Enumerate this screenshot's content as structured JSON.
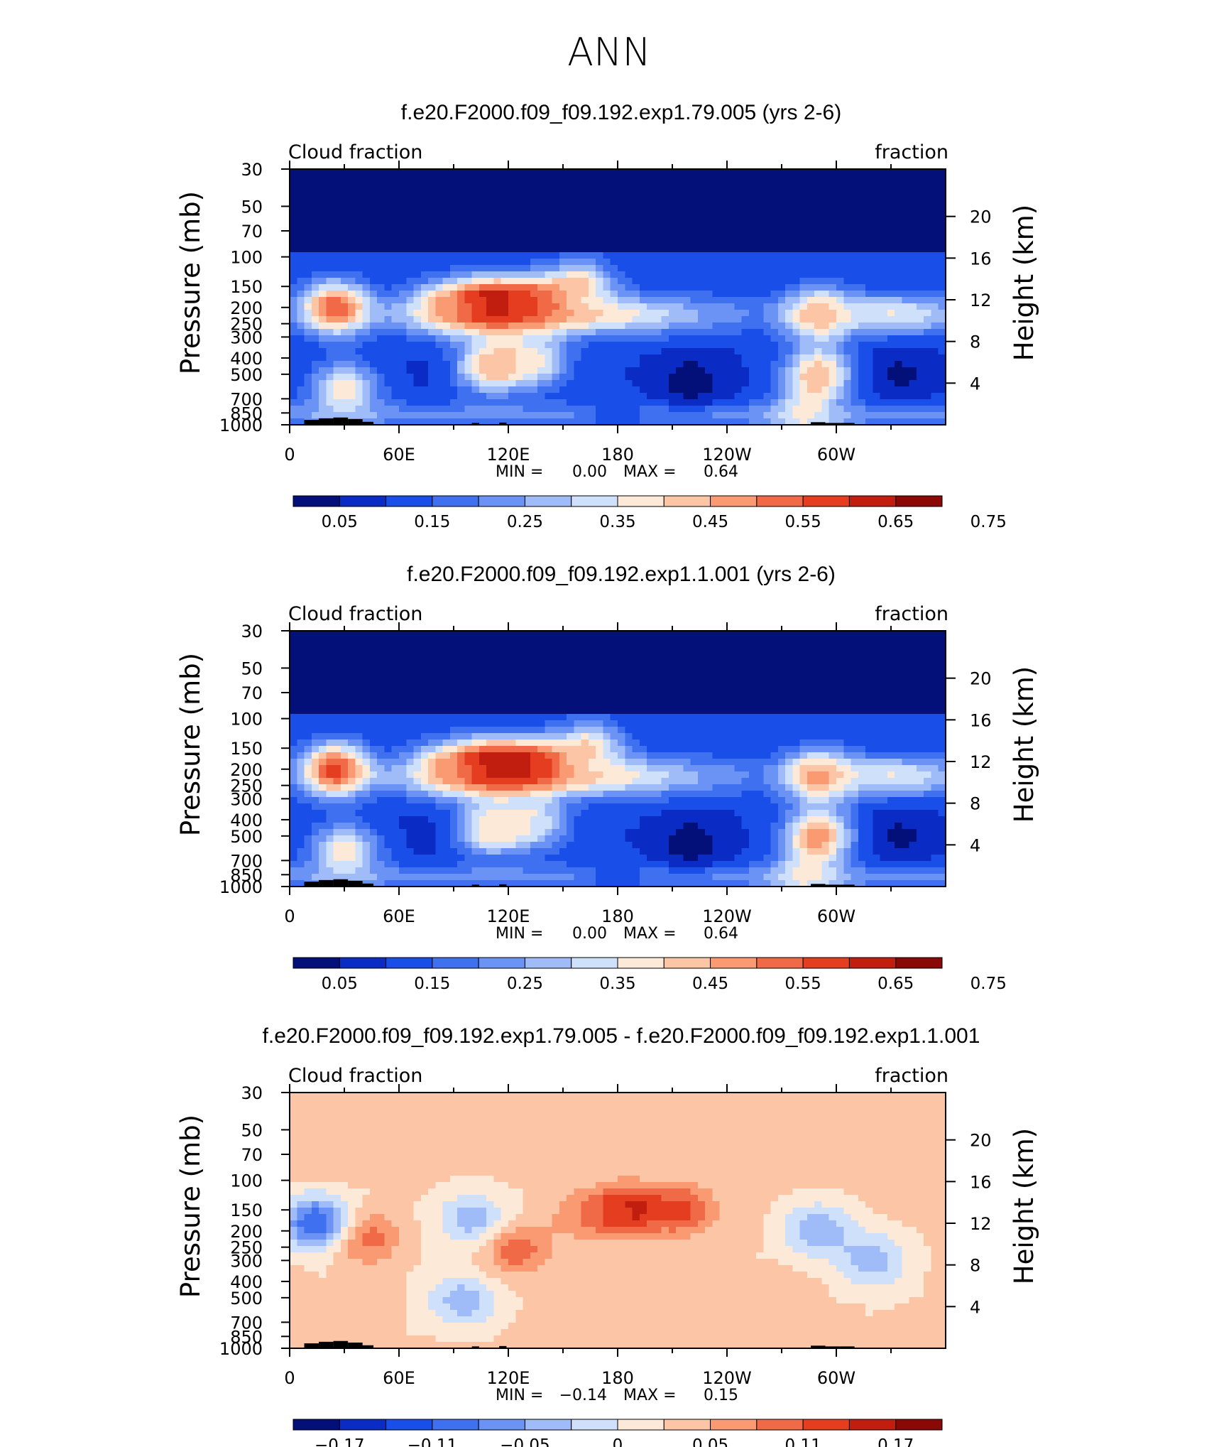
{
  "figure": {
    "title": "ANN"
  },
  "chart_data": [
    {
      "type": "heatmap",
      "title": "f.e20.F2000.f09_f09.192.exp1.79.005 (yrs 2-6)",
      "left_label": "Cloud fraction",
      "right_label": "fraction",
      "xlabel": "",
      "ylabel": "Pressure (mb)",
      "ylabel_right": "Height (km)",
      "x_tick_labels": [
        "0",
        "60E",
        "120E",
        "180",
        "120W",
        "60W"
      ],
      "y_tick_labels": [
        "30",
        "50",
        "70",
        "100",
        "150",
        "200",
        "250",
        "300",
        "400",
        "500",
        "700",
        "850",
        "1000"
      ],
      "height_tick_labels": [
        "20",
        "16",
        "12",
        "8",
        "4"
      ],
      "stats": {
        "min_label": "MIN =",
        "min": "0.00",
        "max_label": "MAX =",
        "max": "0.64"
      },
      "colorbar": {
        "levels": [
          0,
          0.05,
          0.1,
          0.15,
          0.2,
          0.25,
          0.3,
          0.35,
          0.4,
          0.45,
          0.5,
          0.55,
          0.6,
          0.65,
          0.7,
          0.75,
          0.8
        ],
        "labels": [
          "0.05",
          "0.15",
          "0.25",
          "0.35",
          "0.45",
          "0.55",
          "0.65",
          "0.75"
        ],
        "colors": [
          "#03107a",
          "#0a2cc4",
          "#1a4ee8",
          "#3e70f0",
          "#6a93f5",
          "#9fbbf8",
          "#cfe0fb",
          "#fde9d8",
          "#fcc6a6",
          "#f99a72",
          "#f16a47",
          "#e43d1f",
          "#c21e10",
          "#8a0806"
        ]
      },
      "field_features": [
        {
          "lon": 25,
          "lev": 200,
          "value": 0.55
        },
        {
          "lon": 85,
          "lev": 200,
          "value": 0.45
        },
        {
          "lon": 110,
          "lev": 190,
          "value": 0.64
        },
        {
          "lon": 135,
          "lev": 190,
          "value": 0.55
        },
        {
          "lon": 160,
          "lev": 150,
          "value": 0.4
        },
        {
          "lon": 30,
          "lev": 620,
          "value": 0.4
        },
        {
          "lon": 110,
          "lev": 450,
          "value": 0.45
        },
        {
          "lon": 135,
          "lev": 420,
          "value": 0.35
        },
        {
          "lon": 290,
          "lev": 220,
          "value": 0.45
        },
        {
          "lon": 290,
          "lev": 500,
          "value": 0.45
        },
        {
          "lon": 283,
          "lev": 900,
          "value": 0.35
        },
        {
          "lon": 220,
          "lev": 550,
          "value": 0.02
        },
        {
          "lon": 335,
          "lev": 500,
          "value": 0.04
        },
        {
          "lon": 80,
          "lev": 450,
          "value": 0.09
        },
        {
          "lon": 180,
          "lev": 900,
          "value": 0.12
        }
      ]
    },
    {
      "type": "heatmap",
      "title": "f.e20.F2000.f09_f09.192.exp1.1.001 (yrs 2-6)",
      "left_label": "Cloud fraction",
      "right_label": "fraction",
      "xlabel": "",
      "ylabel": "Pressure (mb)",
      "ylabel_right": "Height (km)",
      "x_tick_labels": [
        "0",
        "60E",
        "120E",
        "180",
        "120W",
        "60W"
      ],
      "y_tick_labels": [
        "30",
        "50",
        "70",
        "100",
        "150",
        "200",
        "250",
        "300",
        "400",
        "500",
        "700",
        "850",
        "1000"
      ],
      "height_tick_labels": [
        "20",
        "16",
        "12",
        "8",
        "4"
      ],
      "stats": {
        "min_label": "MIN =",
        "min": "0.00",
        "max_label": "MAX =",
        "max": "0.64"
      },
      "colorbar": {
        "levels": [
          0,
          0.05,
          0.1,
          0.15,
          0.2,
          0.25,
          0.3,
          0.35,
          0.4,
          0.45,
          0.5,
          0.55,
          0.6,
          0.65,
          0.7,
          0.75,
          0.8
        ],
        "labels": [
          "0.05",
          "0.15",
          "0.25",
          "0.35",
          "0.45",
          "0.55",
          "0.65",
          "0.75"
        ],
        "colors": [
          "#03107a",
          "#0a2cc4",
          "#1a4ee8",
          "#3e70f0",
          "#6a93f5",
          "#9fbbf8",
          "#cfe0fb",
          "#fde9d8",
          "#fcc6a6",
          "#f99a72",
          "#f16a47",
          "#e43d1f",
          "#c21e10",
          "#8a0806"
        ]
      },
      "field_features": [
        {
          "lon": 25,
          "lev": 200,
          "value": 0.58
        },
        {
          "lon": 85,
          "lev": 200,
          "value": 0.45
        },
        {
          "lon": 110,
          "lev": 190,
          "value": 0.64
        },
        {
          "lon": 135,
          "lev": 190,
          "value": 0.6
        },
        {
          "lon": 165,
          "lev": 150,
          "value": 0.4
        },
        {
          "lon": 30,
          "lev": 620,
          "value": 0.4
        },
        {
          "lon": 110,
          "lev": 450,
          "value": 0.42
        },
        {
          "lon": 135,
          "lev": 420,
          "value": 0.33
        },
        {
          "lon": 290,
          "lev": 220,
          "value": 0.47
        },
        {
          "lon": 290,
          "lev": 500,
          "value": 0.48
        },
        {
          "lon": 283,
          "lev": 900,
          "value": 0.35
        },
        {
          "lon": 220,
          "lev": 550,
          "value": 0.02
        },
        {
          "lon": 335,
          "lev": 500,
          "value": 0.04
        },
        {
          "lon": 80,
          "lev": 450,
          "value": 0.08
        },
        {
          "lon": 180,
          "lev": 900,
          "value": 0.12
        }
      ]
    },
    {
      "type": "heatmap",
      "title": "f.e20.F2000.f09_f09.192.exp1.79.005 - f.e20.F2000.f09_f09.192.exp1.1.001",
      "left_label": "Cloud fraction",
      "right_label": "fraction",
      "xlabel": "",
      "ylabel": "Pressure (mb)",
      "ylabel_right": "Height (km)",
      "x_tick_labels": [
        "0",
        "60E",
        "120E",
        "180",
        "120W",
        "60W"
      ],
      "y_tick_labels": [
        "30",
        "50",
        "70",
        "100",
        "150",
        "200",
        "250",
        "300",
        "400",
        "500",
        "700",
        "850",
        "1000"
      ],
      "height_tick_labels": [
        "20",
        "16",
        "12",
        "8",
        "4"
      ],
      "stats": {
        "min_label": "MIN =",
        "min": "−0.14",
        "max_label": "MAX =",
        "max": "0.15"
      },
      "colorbar": {
        "levels": [
          -0.22,
          -0.19,
          -0.16,
          -0.13,
          -0.1,
          -0.07,
          -0.04,
          -0.01,
          0.02,
          0.05,
          0.08,
          0.11,
          0.14,
          0.17,
          0.2,
          0.23,
          0.26
        ],
        "labels": [
          "−0.17",
          "−0.11",
          "−0.05",
          "0",
          "0.05",
          "0.11",
          "0.17"
        ],
        "colors": [
          "#03107a",
          "#0a2cc4",
          "#1a4ee8",
          "#3e70f0",
          "#6a93f5",
          "#9fbbf8",
          "#cfe0fb",
          "#fde9d8",
          "#fcc6a6",
          "#f99a72",
          "#f16a47",
          "#e43d1f",
          "#c21e10",
          "#8a0806"
        ]
      },
      "field_features": [
        {
          "lon": 15,
          "lev": 180,
          "value": -0.14
        },
        {
          "lon": 42,
          "lev": 220,
          "value": 0.1
        },
        {
          "lon": 100,
          "lev": 170,
          "value": -0.06
        },
        {
          "lon": 125,
          "lev": 260,
          "value": 0.1
        },
        {
          "lon": 185,
          "lev": 150,
          "value": 0.15
        },
        {
          "lon": 215,
          "lev": 150,
          "value": 0.12
        },
        {
          "lon": 160,
          "lev": 160,
          "value": 0.07
        },
        {
          "lon": 290,
          "lev": 200,
          "value": -0.07
        },
        {
          "lon": 320,
          "lev": 300,
          "value": -0.06
        },
        {
          "lon": 95,
          "lev": 520,
          "value": -0.06
        },
        {
          "lon": 40,
          "lev": 600,
          "value": 0.04
        },
        {
          "lon": 210,
          "lev": 880,
          "value": 0.05
        },
        {
          "lon": 345,
          "lev": 870,
          "value": 0.04
        },
        {
          "lon": 270,
          "lev": 500,
          "value": 0.05
        }
      ]
    }
  ]
}
